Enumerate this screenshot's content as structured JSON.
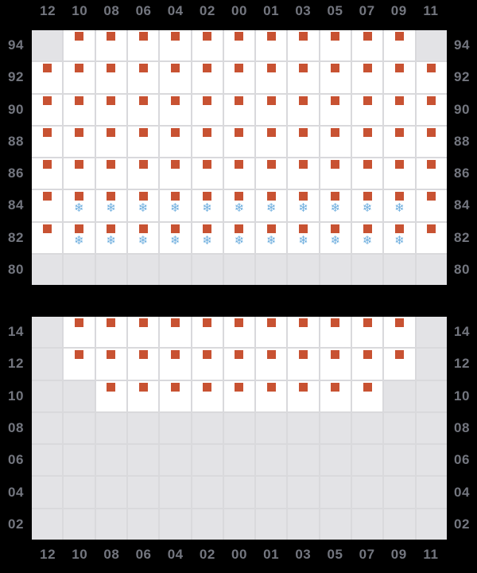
{
  "chart_data": {
    "type": "heatmap",
    "columns": [
      "12",
      "10",
      "08",
      "06",
      "04",
      "02",
      "00",
      "01",
      "03",
      "05",
      "07",
      "09",
      "11"
    ],
    "cell_state_codes": {
      "s": "orange-square",
      "sf": "orange-square-with-snowflake",
      "d": "gray-blank-cell"
    },
    "grids": [
      {
        "id": "top",
        "row_labels": [
          "94",
          "92",
          "90",
          "88",
          "86",
          "84",
          "82",
          "80"
        ],
        "rows": [
          [
            "d",
            "s",
            "s",
            "s",
            "s",
            "s",
            "s",
            "s",
            "s",
            "s",
            "s",
            "s",
            "d"
          ],
          [
            "s",
            "s",
            "s",
            "s",
            "s",
            "s",
            "s",
            "s",
            "s",
            "s",
            "s",
            "s",
            "s"
          ],
          [
            "s",
            "s",
            "s",
            "s",
            "s",
            "s",
            "s",
            "s",
            "s",
            "s",
            "s",
            "s",
            "s"
          ],
          [
            "s",
            "s",
            "s",
            "s",
            "s",
            "s",
            "s",
            "s",
            "s",
            "s",
            "s",
            "s",
            "s"
          ],
          [
            "s",
            "s",
            "s",
            "s",
            "s",
            "s",
            "s",
            "s",
            "s",
            "s",
            "s",
            "s",
            "s"
          ],
          [
            "s",
            "sf",
            "sf",
            "sf",
            "sf",
            "sf",
            "sf",
            "sf",
            "sf",
            "sf",
            "sf",
            "sf",
            "s"
          ],
          [
            "s",
            "sf",
            "sf",
            "sf",
            "sf",
            "sf",
            "sf",
            "sf",
            "sf",
            "sf",
            "sf",
            "sf",
            "s"
          ],
          [
            "d",
            "d",
            "d",
            "d",
            "d",
            "d",
            "d",
            "d",
            "d",
            "d",
            "d",
            "d",
            "d"
          ]
        ]
      },
      {
        "id": "bottom",
        "row_labels": [
          "14",
          "12",
          "10",
          "08",
          "06",
          "04",
          "02"
        ],
        "rows": [
          [
            "d",
            "s",
            "s",
            "s",
            "s",
            "s",
            "s",
            "s",
            "s",
            "s",
            "s",
            "s",
            "d"
          ],
          [
            "d",
            "s",
            "s",
            "s",
            "s",
            "s",
            "s",
            "s",
            "s",
            "s",
            "s",
            "s",
            "d"
          ],
          [
            "d",
            "d",
            "s",
            "s",
            "s",
            "s",
            "s",
            "s",
            "s",
            "s",
            "s",
            "d",
            "d"
          ],
          [
            "d",
            "d",
            "d",
            "d",
            "d",
            "d",
            "d",
            "d",
            "d",
            "d",
            "d",
            "d",
            "d"
          ],
          [
            "d",
            "d",
            "d",
            "d",
            "d",
            "d",
            "d",
            "d",
            "d",
            "d",
            "d",
            "d",
            "d"
          ],
          [
            "d",
            "d",
            "d",
            "d",
            "d",
            "d",
            "d",
            "d",
            "d",
            "d",
            "d",
            "d",
            "d"
          ],
          [
            "d",
            "d",
            "d",
            "d",
            "d",
            "d",
            "d",
            "d",
            "d",
            "d",
            "d",
            "d",
            "d"
          ]
        ]
      }
    ],
    "icons": {
      "square": "square-icon",
      "snowflake": "snowflake-icon",
      "snowflake_glyph": "❄"
    },
    "layout_hints": {
      "top_axis_position": "above-top-grid",
      "bottom_axis_position": "below-bottom-grid",
      "row_labels_position": "both-sides",
      "grid_on": true,
      "legend": "none"
    },
    "colors": {
      "background": "#000000",
      "cell": "#ffffff",
      "disabled_cell": "#e3e3e6",
      "grid_line": "#d9d9dc",
      "square": "#c85232",
      "snowflake": "#6cadde",
      "label": "#73767f"
    }
  }
}
